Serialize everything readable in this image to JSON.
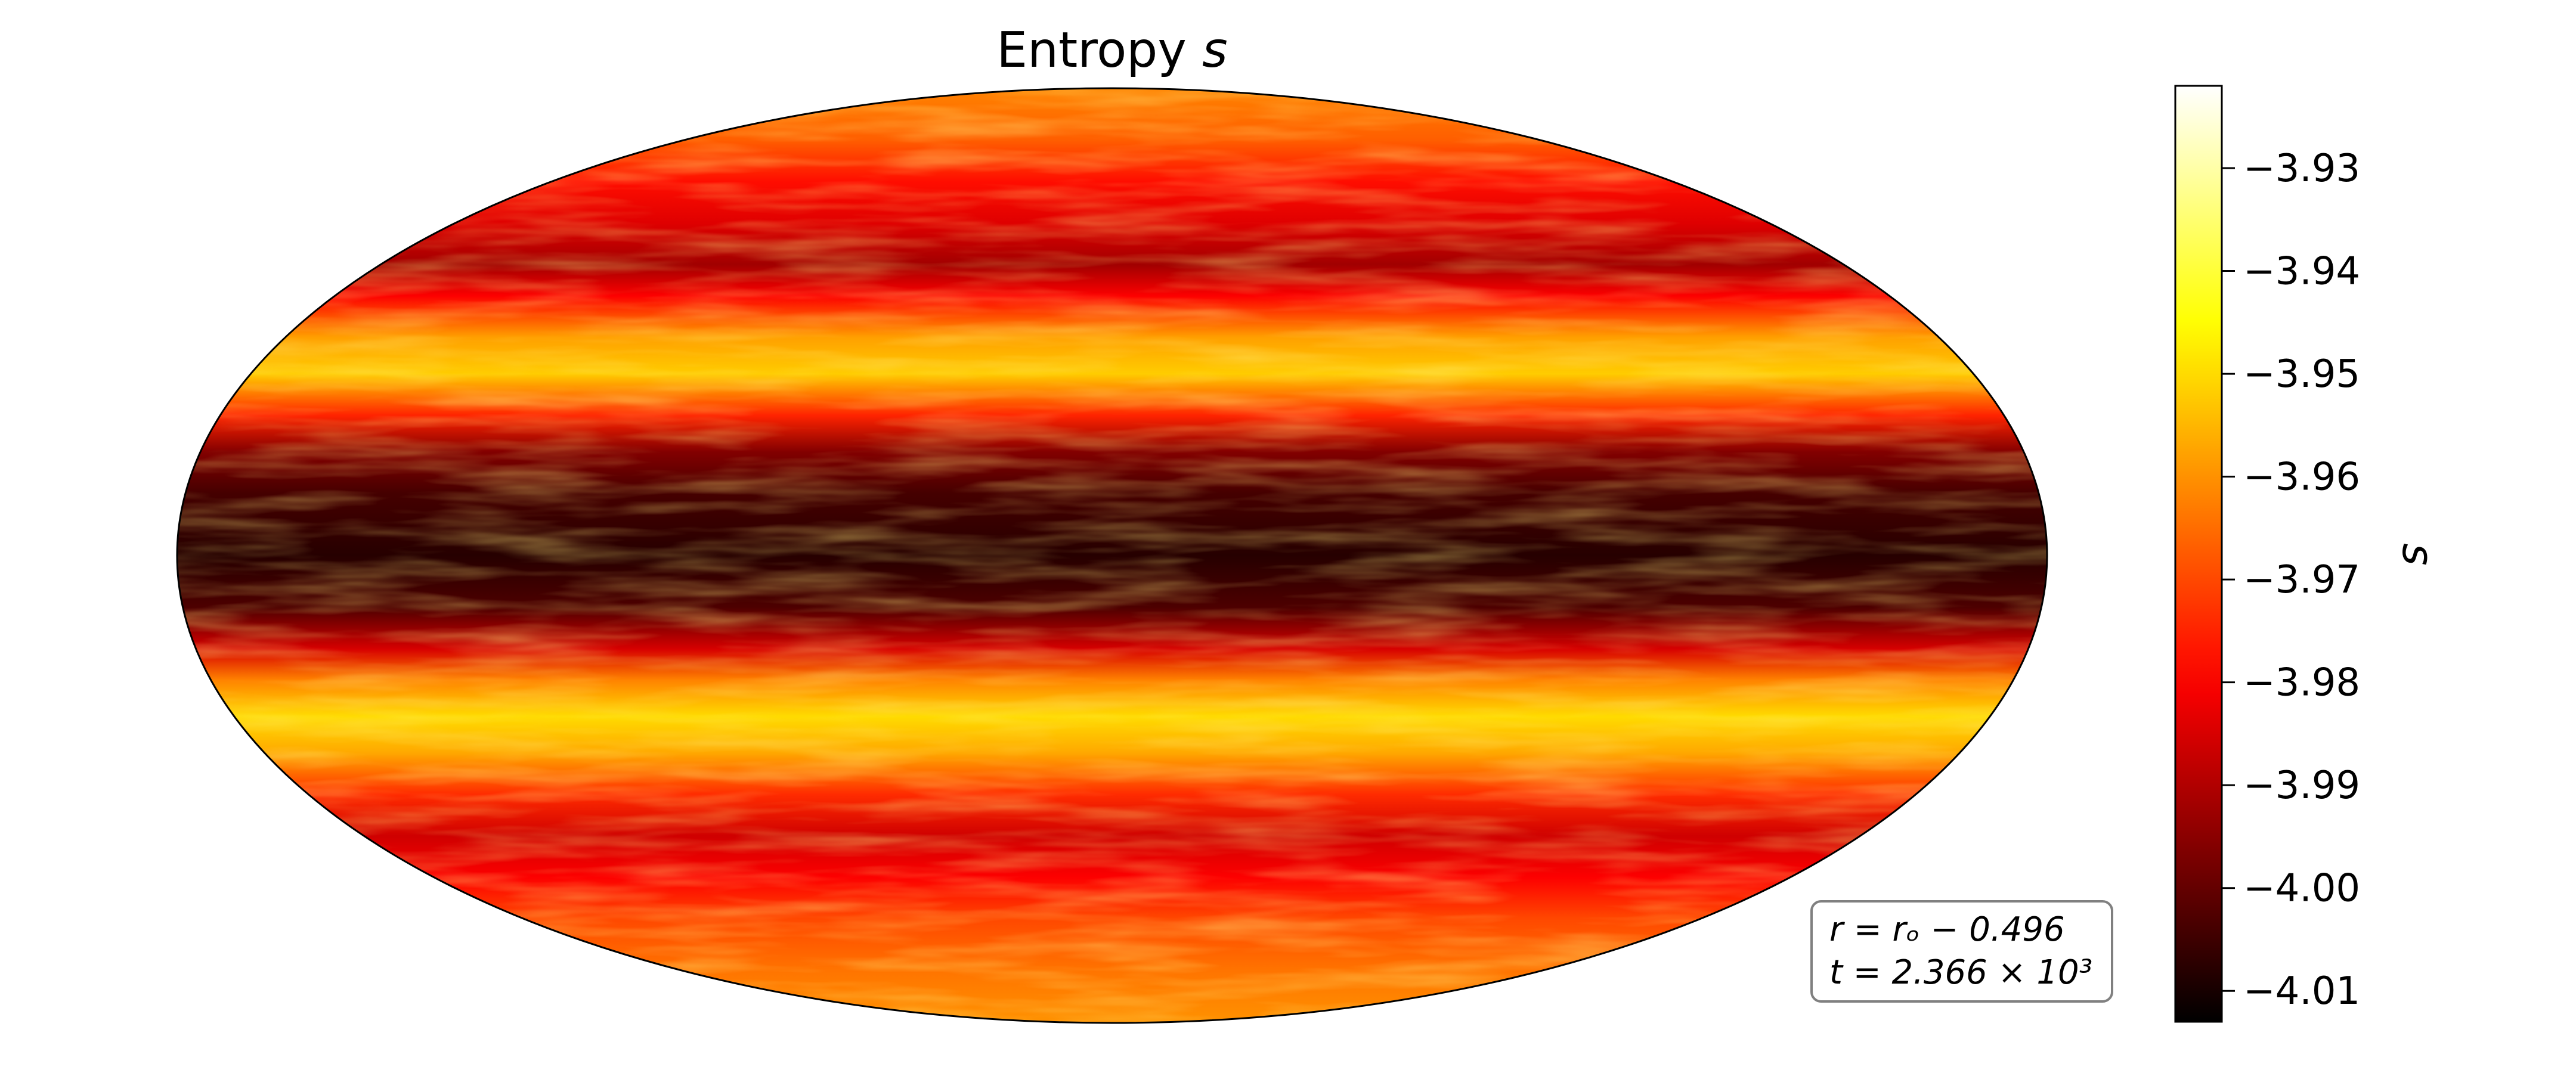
{
  "chart_data": {
    "type": "heatmap",
    "projection": "mollweide",
    "title": "Entropy s",
    "title_prefix": "Entropy ",
    "title_symbol": "s",
    "colormap": "hot",
    "colorbar": {
      "label": "s",
      "vmin": -4.013,
      "vmax": -3.922,
      "ticks": [
        -3.93,
        -3.94,
        -3.95,
        -3.96,
        -3.97,
        -3.98,
        -3.99,
        -4.0,
        -4.01
      ],
      "tick_labels": [
        "−3.93",
        "−3.94",
        "−3.95",
        "−3.96",
        "−3.97",
        "−3.98",
        "−3.99",
        "−4.00",
        "−4.01"
      ]
    },
    "latitude_profile": [
      {
        "lat": 90,
        "s": -3.962
      },
      {
        "lat": 80,
        "s": -3.967
      },
      {
        "lat": 72,
        "s": -3.978
      },
      {
        "lat": 64,
        "s": -3.984
      },
      {
        "lat": 56,
        "s": -3.992
      },
      {
        "lat": 50,
        "s": -3.98
      },
      {
        "lat": 42,
        "s": -3.958
      },
      {
        "lat": 35,
        "s": -3.952
      },
      {
        "lat": 27,
        "s": -3.975
      },
      {
        "lat": 20,
        "s": -3.996
      },
      {
        "lat": 12,
        "s": -4.004
      },
      {
        "lat": 0,
        "s": -4.008
      },
      {
        "lat": -10,
        "s": -4.003
      },
      {
        "lat": -18,
        "s": -3.985
      },
      {
        "lat": -24,
        "s": -3.962
      },
      {
        "lat": -31,
        "s": -3.95
      },
      {
        "lat": -38,
        "s": -3.957
      },
      {
        "lat": -46,
        "s": -3.974
      },
      {
        "lat": -54,
        "s": -3.986
      },
      {
        "lat": -62,
        "s": -3.98
      },
      {
        "lat": -70,
        "s": -3.97
      },
      {
        "lat": -80,
        "s": -3.964
      },
      {
        "lat": -90,
        "s": -3.96
      }
    ],
    "annotation": {
      "line1": "r = rₒ −  0.496",
      "line2": "t = 2.366 × 10³"
    }
  }
}
